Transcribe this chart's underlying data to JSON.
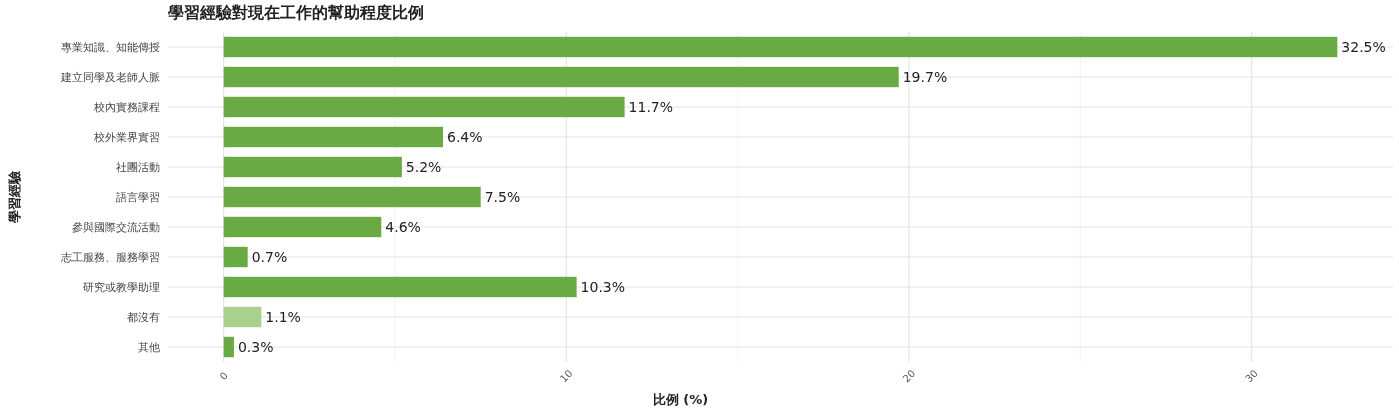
{
  "chart_data": {
    "type": "bar",
    "orientation": "horizontal",
    "title": "學習經驗對現在工作的幫助程度比例",
    "xlabel": "比例 (%)",
    "ylabel": "學習經驗",
    "categories": [
      "專業知識、知能傳授",
      "建立同學及老師人脈",
      "校內實務課程",
      "校外業界實習",
      "社團活動",
      "語言學習",
      "參與國際交流活動",
      "志工服務、服務學習",
      "研究或教學助理",
      "都沒有",
      "其他"
    ],
    "values": [
      32.5,
      19.7,
      11.7,
      6.4,
      5.2,
      7.5,
      4.6,
      0.7,
      10.3,
      1.1,
      0.3
    ],
    "value_labels": [
      "32.5%",
      "19.7%",
      "11.7%",
      "6.4%",
      "5.2%",
      "7.5%",
      "4.6%",
      "0.7%",
      "10.3%",
      "1.1%",
      "0.3%"
    ],
    "colors": [
      "#6aaa45",
      "#6aaa45",
      "#6aaa45",
      "#6aaa45",
      "#6aaa45",
      "#6aaa45",
      "#6aaa45",
      "#6aaa45",
      "#6aaa45",
      "#a9d18e",
      "#6aaa45"
    ],
    "xlim": [
      -1.625,
      34.125
    ],
    "xticks": [
      0,
      {
        "value": 5,
        "label": null
      },
      10,
      {
        "value": 15,
        "label": null
      },
      20,
      {
        "value": 25,
        "label": null
      },
      30
    ],
    "grid": true
  }
}
